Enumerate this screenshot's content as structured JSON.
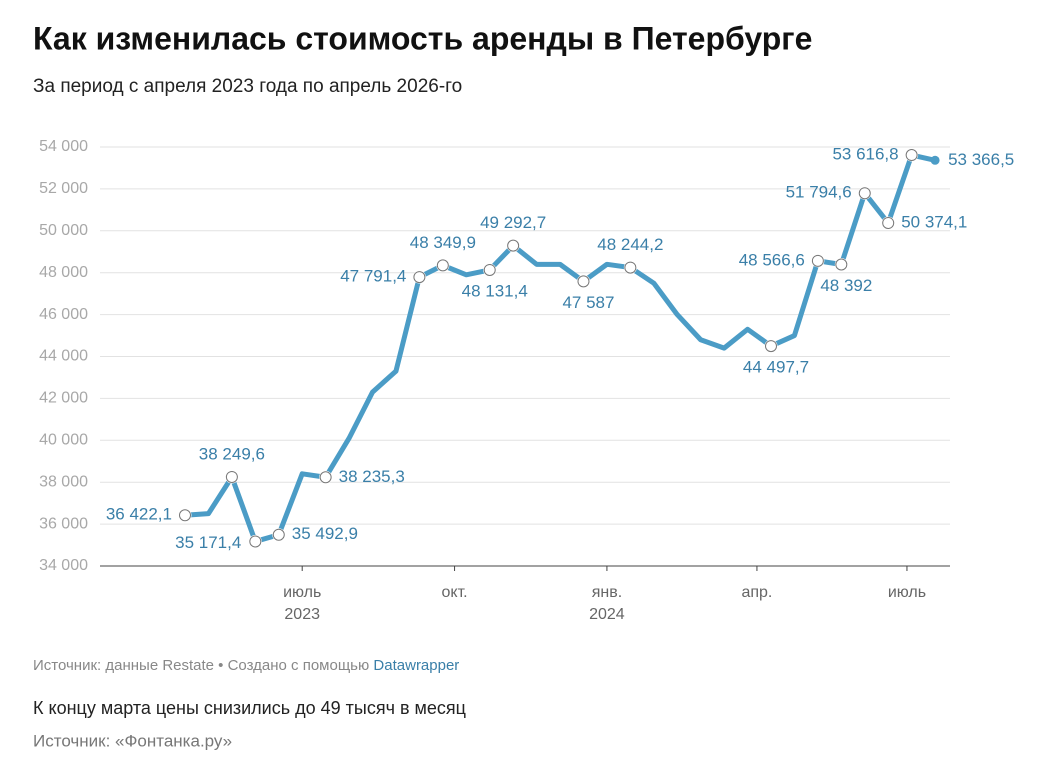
{
  "chart_data": {
    "type": "line",
    "title": "Как изменилась стоимость аренды в Петербурге",
    "subtitle": "За период с апреля 2023 года по апрель 2026-го",
    "categories": [
      null,
      null,
      null,
      null,
      null,
      null,
      null,
      null,
      null,
      null,
      null,
      null,
      null,
      null,
      null,
      null,
      null,
      null,
      null,
      null,
      null,
      null,
      null,
      null,
      null,
      null,
      null,
      null,
      null,
      null,
      null,
      null,
      null
    ],
    "values": [
      36422.1,
      36500,
      38249.6,
      35171.4,
      35492.9,
      38400,
      38235.3,
      40100,
      42300,
      43300,
      47791.4,
      48349.9,
      47900,
      48131.4,
      49292.7,
      48400,
      48400,
      47587,
      48400,
      48244.2,
      47500,
      46000,
      44800,
      44400,
      45300,
      44497.7,
      45000,
      48566.6,
      48392,
      51794.6,
      50374.1,
      53616.8,
      53366.5
    ],
    "value_labels": [
      "36 422,1",
      null,
      "38 249,6",
      "35 171,4",
      "35 492,9",
      null,
      "38 235,3",
      null,
      null,
      null,
      "47 791,4",
      "48 349,9",
      null,
      "48 131,4",
      "49 292,7",
      null,
      null,
      "47 587",
      null,
      "48 244,2",
      null,
      null,
      null,
      null,
      null,
      "44 497,7",
      null,
      "48 566,6",
      "48 392",
      "51 794,6",
      "50 374,1",
      "53 616,8",
      "53 366,5"
    ],
    "color": "#4b9cc6",
    "ylim": [
      34000,
      54000
    ],
    "yticks": [
      {
        "value": 34000,
        "label": "34 000"
      },
      {
        "value": 36000,
        "label": "36 000"
      },
      {
        "value": 38000,
        "label": "38 000"
      },
      {
        "value": 40000,
        "label": "40 000"
      },
      {
        "value": 42000,
        "label": "42 000"
      },
      {
        "value": 44000,
        "label": "44 000"
      },
      {
        "value": 46000,
        "label": "46 000"
      },
      {
        "value": 48000,
        "label": "48 000"
      },
      {
        "value": 50000,
        "label": "50 000"
      },
      {
        "value": 52000,
        "label": "52 000"
      },
      {
        "value": 54000,
        "label": "54 000"
      }
    ],
    "xticks": [
      {
        "value": 5,
        "label": "июль",
        "year": "2023"
      },
      {
        "value": 11.5,
        "label": "окт."
      },
      {
        "value": 18,
        "label": "янв.",
        "year": "2024"
      },
      {
        "value": 24.4,
        "label": "апр."
      },
      {
        "value": 30.8,
        "label": "июль"
      }
    ],
    "grid": true,
    "source": "Источник: данные Restate • Создано с помощью",
    "source_link": "Datawrapper"
  },
  "caption": "К концу марта цены снизились до 49 тысяч в месяц",
  "caption_source": "Источник: «Фонтанка.ру»"
}
